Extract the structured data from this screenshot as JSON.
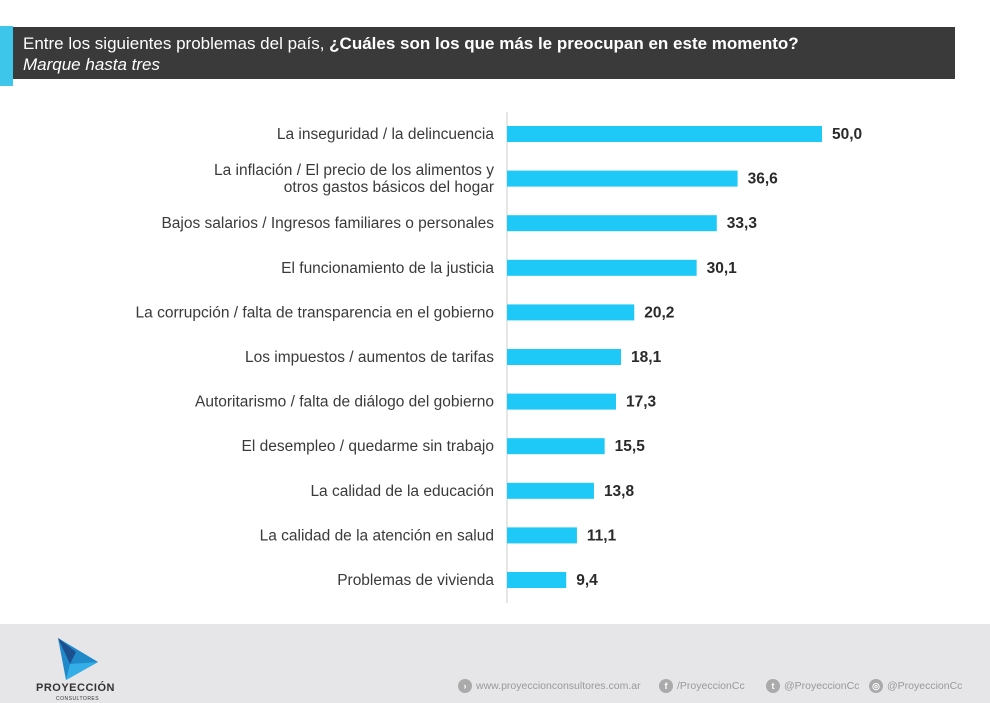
{
  "header": {
    "question_prefix": "Entre los siguientes problemas del país, ",
    "question_bold": "¿Cuáles son los que más le preocupan en este momento?",
    "instruction": "Marque hasta tres",
    "accent_color": "#3ec6ea"
  },
  "chart_data": {
    "type": "bar",
    "orientation": "horizontal",
    "bar_color": "#1ec8f7",
    "categories": [
      "La inseguridad / la delincuencia",
      "La inflación / El precio de los alimentos y\notros gastos básicos del hogar",
      "Bajos salarios / Ingresos familiares o personales",
      "El funcionamiento de la justicia",
      "La corrupción / falta de transparencia en el gobierno",
      "Los impuestos / aumentos de tarifas",
      "Autoritarismo / falta de diálogo del gobierno",
      "El desempleo / quedarme sin trabajo",
      "La calidad de la educación",
      "La calidad de la atención en salud",
      "Problemas de vivienda"
    ],
    "values": [
      50.0,
      36.6,
      33.3,
      30.1,
      20.2,
      18.1,
      17.3,
      15.5,
      13.8,
      11.1,
      9.4
    ],
    "value_labels": [
      "50,0",
      "36,6",
      "33,3",
      "30,1",
      "20,2",
      "18,1",
      "17,3",
      "15,5",
      "13,8",
      "11,1",
      "9,4"
    ],
    "xlim": [
      0,
      50
    ],
    "grid": false
  },
  "footer": {
    "logo_name": "PROYECCIÓN",
    "logo_sub": "CONSULTORES",
    "website": "www.proyeccionconsultores.com.ar",
    "facebook": "/ProyeccionCc",
    "twitter": "@ProyeccionCc",
    "instagram": "@ProyeccionCc"
  }
}
